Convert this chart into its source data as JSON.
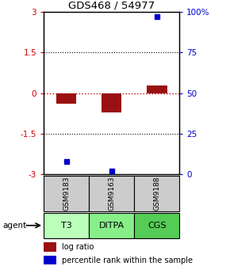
{
  "title": "GDS468 / 54977",
  "samples": [
    "GSM9183",
    "GSM9163",
    "GSM9188"
  ],
  "agents": [
    "T3",
    "DITPA",
    "CGS"
  ],
  "log_ratios": [
    -0.4,
    -0.72,
    0.28
  ],
  "percentile_ranks": [
    8.0,
    2.0,
    97.0
  ],
  "ylim_left": [
    -3,
    3
  ],
  "ylim_right": [
    0,
    100
  ],
  "yticks_left": [
    -3,
    -1.5,
    0,
    1.5,
    3
  ],
  "yticks_right": [
    0,
    25,
    50,
    75,
    100
  ],
  "ytick_labels_left": [
    "-3",
    "-1.5",
    "0",
    "1.5",
    "3"
  ],
  "ytick_labels_right": [
    "0",
    "25",
    "50",
    "75",
    "100%"
  ],
  "bar_color": "#991111",
  "point_color": "#0000cc",
  "sample_bg_color": "#cccccc",
  "legend_bar_label": "log ratio",
  "legend_point_label": "percentile rank within the sample",
  "agent_label": "agent",
  "zero_line_color": "#cc0000",
  "agent_colors": [
    "#bbffbb",
    "#88ee88",
    "#55cc55"
  ],
  "bar_width": 0.45
}
